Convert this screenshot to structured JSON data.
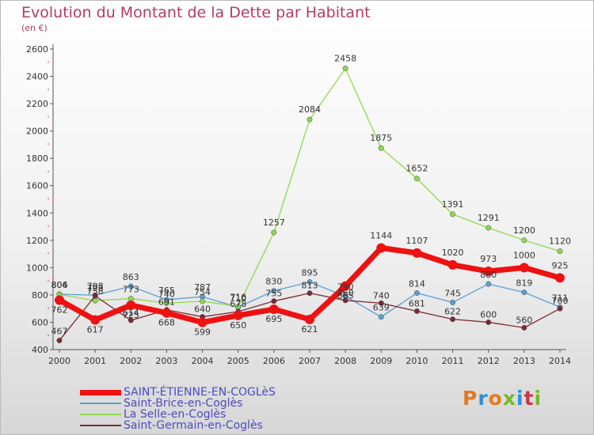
{
  "header": {
    "title": "Evolution du Montant de la Dette par Habitant",
    "subtitle": "(en €)"
  },
  "logo": {
    "text": "Proxiti",
    "colors": [
      "#e8781e",
      "#2f8fd6",
      "#e8781e",
      "#78b82a",
      "#2f8fd6",
      "#c7364a",
      "#78b82a"
    ]
  },
  "chart_data": {
    "type": "line",
    "title": "Evolution du Montant de la Dette par Habitant",
    "subtitle": "(en €)",
    "xlabel": "",
    "ylabel": "",
    "x": [
      "2000",
      "2001",
      "2002",
      "2003",
      "2004",
      "2005",
      "2006",
      "2007",
      "2008",
      "2009",
      "2010",
      "2011",
      "2012",
      "2013",
      "2014"
    ],
    "ylim": [
      400,
      2600
    ],
    "yticks": [
      400,
      600,
      800,
      1000,
      1200,
      1400,
      1600,
      1800,
      2000,
      2200,
      2400,
      2600
    ],
    "grid": false,
    "legend_position": "bottom",
    "series": [
      {
        "name": "SAINT-ÉTIENNE-EN-COGLèS",
        "color": "#ee1111",
        "values": [
          762,
          617,
          725,
          668,
          599,
          650,
          695,
          621,
          865,
          1144,
          1107,
          1020,
          973,
          1000,
          925
        ],
        "bold": true
      },
      {
        "name": "Saint-Brice-en-Coglès",
        "color": "#5aa0d6",
        "values": [
          806,
          798,
          863,
          765,
          787,
          710,
          830,
          895,
          790,
          639,
          814,
          745,
          880,
          819,
          711
        ]
      },
      {
        "name": "La Selle-en-Coglès",
        "color": "#8fd84f",
        "values": [
          804,
          758,
          773,
          740,
          754,
          716,
          1257,
          2084,
          2458,
          1875,
          1652,
          1391,
          1291,
          1200,
          1120
        ]
      },
      {
        "name": "Saint-Germain-en-Coglès",
        "color": "#7b2a34",
        "values": [
          467,
          793,
          614,
          691,
          640,
          678,
          755,
          813,
          760,
          740,
          681,
          622,
          600,
          560,
          700
        ]
      }
    ]
  }
}
